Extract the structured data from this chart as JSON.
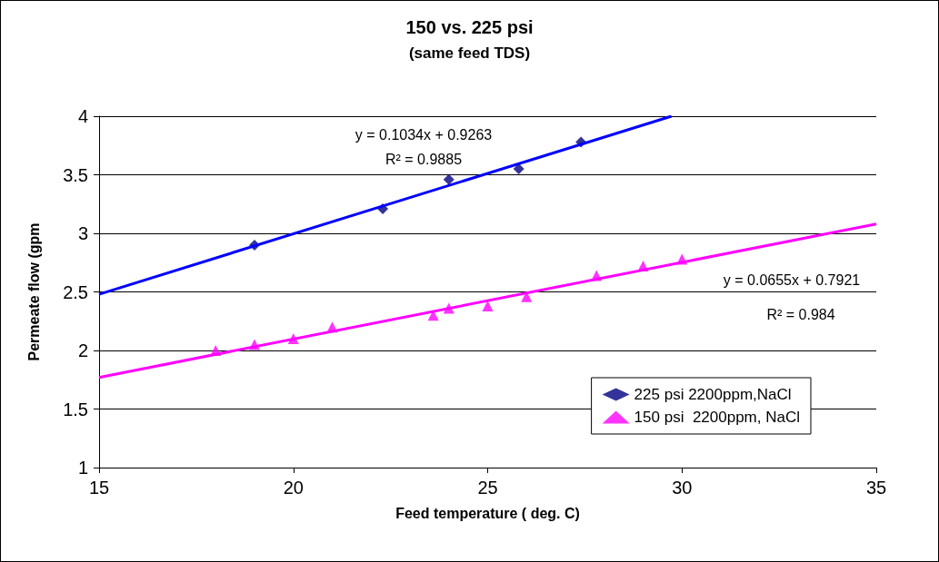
{
  "chart_data": {
    "type": "scatter",
    "title": "150 vs. 225 psi",
    "subtitle": "(same feed TDS)",
    "xlabel": "Feed temperature ( deg. C)",
    "ylabel": "Permeate flow (gpm",
    "series": [
      {
        "name": "225 psi 2200ppm,NaCl",
        "color": "#000080",
        "marker": "diamond",
        "x": [
          19,
          22.3,
          24,
          25.8,
          27.4
        ],
        "values": [
          2.9,
          3.21,
          3.46,
          3.55,
          3.78
        ]
      },
      {
        "name": "150 psi  2200ppm, NaCl",
        "color": "#ff00ff",
        "marker": "triangle",
        "x": [
          18,
          19,
          20,
          21,
          23.6,
          24,
          25,
          26,
          27.8,
          29,
          30
        ],
        "values": [
          2.0,
          2.05,
          2.1,
          2.2,
          2.3,
          2.36,
          2.38,
          2.46,
          2.64,
          2.72,
          2.78
        ]
      },
      {
        "type": "line",
        "color": "#0000ff",
        "marker": "none",
        "x": [
          15,
          29.73
        ],
        "values": [
          2.48,
          4.0
        ]
      },
      {
        "type": "line",
        "color": "#ff00ff",
        "marker": "none",
        "x": [
          15,
          35
        ],
        "values": [
          1.77,
          3.08
        ]
      }
    ],
    "annotations": [
      "y = 0.1034x + 0.9263",
      "R² = 0.9885",
      "y = 0.0655x + 0.7921",
      "R² = 0.984"
    ],
    "xlim": [
      15,
      35
    ],
    "xticks": [
      15,
      20,
      25,
      30,
      35
    ],
    "ylim": [
      1,
      4
    ],
    "yticks": [
      1,
      1.5,
      2,
      2.5,
      3,
      3.5,
      4
    ],
    "grid": "y",
    "legend": "bottom right",
    "line_style": "solid"
  }
}
